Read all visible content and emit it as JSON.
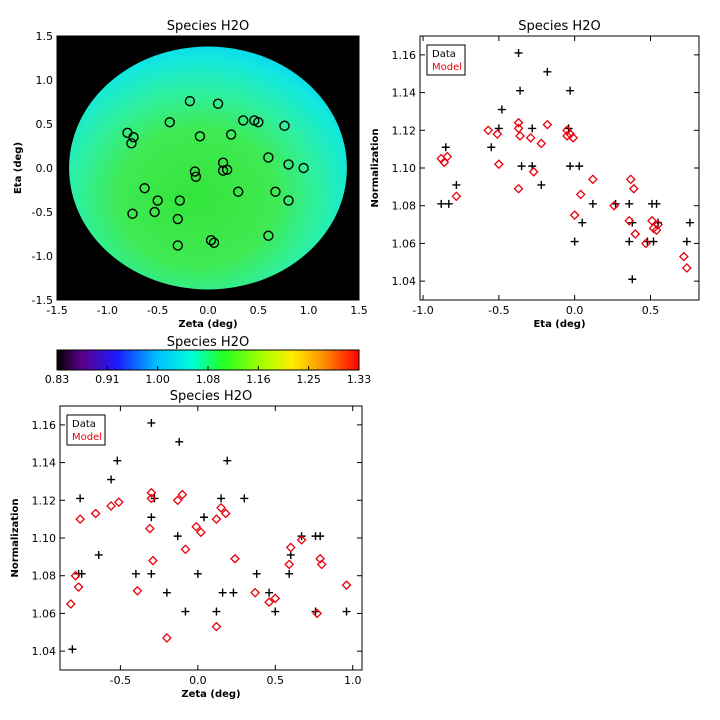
{
  "chart_data": [
    {
      "id": "map",
      "type": "heatmap",
      "title": "Species H2O",
      "xlabel": "Zeta (deg)",
      "ylabel": "Eta (deg)",
      "xlim": [
        -1.5,
        1.5
      ],
      "ylim": [
        -1.5,
        1.5
      ],
      "xticks": [
        -1.5,
        -1.0,
        -0.5,
        0.0,
        0.5,
        1.0,
        1.5
      ],
      "yticks": [
        -1.5,
        -1.0,
        -0.5,
        0.0,
        0.5,
        1.0,
        1.5
      ],
      "disk": {
        "center": [
          0,
          0
        ],
        "radius": 1.38
      },
      "field_color_range": [
        1.04,
        1.2
      ],
      "background": "#000000",
      "points": [
        {
          "x": -0.8,
          "y": 0.4
        },
        {
          "x": -0.74,
          "y": 0.35
        },
        {
          "x": -0.76,
          "y": 0.28
        },
        {
          "x": -0.38,
          "y": 0.52
        },
        {
          "x": -0.18,
          "y": 0.76
        },
        {
          "x": 0.1,
          "y": 0.73
        },
        {
          "x": -0.08,
          "y": 0.36
        },
        {
          "x": 0.23,
          "y": 0.38
        },
        {
          "x": 0.35,
          "y": 0.54
        },
        {
          "x": 0.46,
          "y": 0.54
        },
        {
          "x": 0.5,
          "y": 0.52
        },
        {
          "x": 0.76,
          "y": 0.48
        },
        {
          "x": 0.6,
          "y": 0.12
        },
        {
          "x": 0.8,
          "y": 0.04
        },
        {
          "x": 0.95,
          "y": 0.0
        },
        {
          "x": 0.15,
          "y": 0.06
        },
        {
          "x": 0.15,
          "y": -0.03
        },
        {
          "x": 0.19,
          "y": -0.02
        },
        {
          "x": -0.13,
          "y": -0.04
        },
        {
          "x": -0.12,
          "y": -0.1
        },
        {
          "x": -0.63,
          "y": -0.23
        },
        {
          "x": -0.5,
          "y": -0.37
        },
        {
          "x": -0.28,
          "y": -0.37
        },
        {
          "x": -0.53,
          "y": -0.5
        },
        {
          "x": -0.75,
          "y": -0.52
        },
        {
          "x": -0.3,
          "y": -0.58
        },
        {
          "x": 0.3,
          "y": -0.27
        },
        {
          "x": 0.67,
          "y": -0.27
        },
        {
          "x": 0.8,
          "y": -0.37
        },
        {
          "x": 0.6,
          "y": -0.77
        },
        {
          "x": 0.03,
          "y": -0.82
        },
        {
          "x": 0.06,
          "y": -0.85
        },
        {
          "x": -0.3,
          "y": -0.88
        }
      ]
    },
    {
      "id": "colorbar",
      "type": "colorbar",
      "title": "Species H2O",
      "range": [
        0.83,
        1.33
      ],
      "tick_labels": [
        "0.83",
        "0.91",
        "1.00",
        "1.08",
        "1.16",
        "1.25",
        "1.33"
      ]
    },
    {
      "id": "eta",
      "type": "scatter",
      "title": "Species H2O",
      "xlabel": "Eta (deg)",
      "ylabel": "Normalization",
      "xlim": [
        -1.02,
        0.82
      ],
      "ylim": [
        1.03,
        1.17
      ],
      "xticks": [
        -1.0,
        -0.5,
        0.0,
        0.5
      ],
      "yticks": [
        1.04,
        1.06,
        1.08,
        1.1,
        1.12,
        1.14,
        1.16
      ],
      "legend": {
        "position": "top-left",
        "entries": [
          {
            "label": "Data",
            "color": "#000000"
          },
          {
            "label": "Model",
            "color": "#e8000b"
          }
        ]
      },
      "series": [
        {
          "name": "Data",
          "marker": "plus",
          "color": "#000000",
          "points": [
            [
              -0.85,
              1.111
            ],
            [
              -0.88,
              1.081
            ],
            [
              -0.83,
              1.081
            ],
            [
              -0.78,
              1.091
            ],
            [
              -0.5,
              1.121
            ],
            [
              -0.48,
              1.131
            ],
            [
              -0.55,
              1.111
            ],
            [
              -0.37,
              1.161
            ],
            [
              -0.36,
              1.141
            ],
            [
              -0.35,
              1.101
            ],
            [
              -0.28,
              1.121
            ],
            [
              -0.28,
              1.101
            ],
            [
              -0.22,
              1.091
            ],
            [
              -0.18,
              1.151
            ],
            [
              -0.03,
              1.141
            ],
            [
              -0.04,
              1.121
            ],
            [
              -0.03,
              1.101
            ],
            [
              0.0,
              1.061
            ],
            [
              0.03,
              1.101
            ],
            [
              0.05,
              1.071
            ],
            [
              0.12,
              1.081
            ],
            [
              0.27,
              1.081
            ],
            [
              0.36,
              1.081
            ],
            [
              0.38,
              1.071
            ],
            [
              0.36,
              1.061
            ],
            [
              0.38,
              1.041
            ],
            [
              0.48,
              1.061
            ],
            [
              0.51,
              1.081
            ],
            [
              0.54,
              1.081
            ],
            [
              0.52,
              1.061
            ],
            [
              0.55,
              1.071
            ],
            [
              0.74,
              1.061
            ],
            [
              0.76,
              1.071
            ]
          ]
        },
        {
          "name": "Model",
          "marker": "diamond",
          "color": "#e8000b",
          "points": [
            [
              -0.88,
              1.105
            ],
            [
              -0.86,
              1.103
            ],
            [
              -0.84,
              1.106
            ],
            [
              -0.78,
              1.085
            ],
            [
              -0.57,
              1.12
            ],
            [
              -0.51,
              1.118
            ],
            [
              -0.5,
              1.102
            ],
            [
              -0.37,
              1.124
            ],
            [
              -0.37,
              1.121
            ],
            [
              -0.36,
              1.117
            ],
            [
              -0.37,
              1.089
            ],
            [
              -0.29,
              1.116
            ],
            [
              -0.27,
              1.098
            ],
            [
              -0.22,
              1.113
            ],
            [
              -0.18,
              1.123
            ],
            [
              -0.05,
              1.12
            ],
            [
              -0.05,
              1.117
            ],
            [
              -0.03,
              1.118
            ],
            [
              -0.01,
              1.116
            ],
            [
              0.0,
              1.075
            ],
            [
              0.04,
              1.086
            ],
            [
              0.12,
              1.094
            ],
            [
              0.26,
              1.08
            ],
            [
              0.37,
              1.094
            ],
            [
              0.39,
              1.089
            ],
            [
              0.36,
              1.072
            ],
            [
              0.4,
              1.065
            ],
            [
              0.47,
              1.06
            ],
            [
              0.51,
              1.072
            ],
            [
              0.52,
              1.068
            ],
            [
              0.55,
              1.07
            ],
            [
              0.54,
              1.067
            ],
            [
              0.72,
              1.053
            ],
            [
              0.74,
              1.047
            ]
          ]
        }
      ]
    },
    {
      "id": "zeta",
      "type": "scatter",
      "title": "Species H2O",
      "xlabel": "Zeta (deg)",
      "ylabel": "Normalization",
      "xlim": [
        -0.89,
        1.06
      ],
      "ylim": [
        1.03,
        1.17
      ],
      "xticks": [
        -0.5,
        0.0,
        0.5,
        1.0
      ],
      "yticks": [
        1.04,
        1.06,
        1.08,
        1.1,
        1.12,
        1.14,
        1.16
      ],
      "legend": {
        "position": "top-left",
        "entries": [
          {
            "label": "Data",
            "color": "#000000"
          },
          {
            "label": "Model",
            "color": "#e8000b"
          }
        ]
      },
      "series": [
        {
          "name": "Data",
          "marker": "plus",
          "color": "#000000",
          "points": [
            [
              -0.81,
              1.041
            ],
            [
              -0.77,
              1.081
            ],
            [
              -0.75,
              1.081
            ],
            [
              -0.76,
              1.121
            ],
            [
              -0.64,
              1.091
            ],
            [
              -0.56,
              1.131
            ],
            [
              -0.52,
              1.141
            ],
            [
              -0.4,
              1.081
            ],
            [
              -0.3,
              1.081
            ],
            [
              -0.3,
              1.111
            ],
            [
              -0.3,
              1.161
            ],
            [
              -0.28,
              1.121
            ],
            [
              -0.2,
              1.071
            ],
            [
              -0.13,
              1.101
            ],
            [
              -0.12,
              1.151
            ],
            [
              -0.08,
              1.061
            ],
            [
              0.0,
              1.081
            ],
            [
              0.04,
              1.111
            ],
            [
              0.12,
              1.061
            ],
            [
              0.15,
              1.121
            ],
            [
              0.16,
              1.071
            ],
            [
              0.19,
              1.141
            ],
            [
              0.23,
              1.071
            ],
            [
              0.3,
              1.121
            ],
            [
              0.38,
              1.081
            ],
            [
              0.46,
              1.071
            ],
            [
              0.5,
              1.061
            ],
            [
              0.59,
              1.081
            ],
            [
              0.6,
              1.091
            ],
            [
              0.67,
              1.101
            ],
            [
              0.76,
              1.101
            ],
            [
              0.79,
              1.101
            ],
            [
              0.76,
              1.061
            ],
            [
              0.96,
              1.061
            ]
          ]
        },
        {
          "name": "Model",
          "marker": "diamond",
          "color": "#e8000b",
          "points": [
            [
              -0.82,
              1.065
            ],
            [
              -0.79,
              1.08
            ],
            [
              -0.77,
              1.074
            ],
            [
              -0.76,
              1.11
            ],
            [
              -0.66,
              1.113
            ],
            [
              -0.56,
              1.117
            ],
            [
              -0.51,
              1.119
            ],
            [
              -0.39,
              1.072
            ],
            [
              -0.3,
              1.121
            ],
            [
              -0.3,
              1.124
            ],
            [
              -0.31,
              1.105
            ],
            [
              -0.29,
              1.088
            ],
            [
              -0.2,
              1.047
            ],
            [
              -0.13,
              1.12
            ],
            [
              -0.1,
              1.123
            ],
            [
              -0.08,
              1.094
            ],
            [
              -0.01,
              1.106
            ],
            [
              0.02,
              1.103
            ],
            [
              0.12,
              1.053
            ],
            [
              0.12,
              1.11
            ],
            [
              0.15,
              1.116
            ],
            [
              0.18,
              1.113
            ],
            [
              0.24,
              1.089
            ],
            [
              0.37,
              1.071
            ],
            [
              0.46,
              1.066
            ],
            [
              0.5,
              1.068
            ],
            [
              0.59,
              1.086
            ],
            [
              0.6,
              1.095
            ],
            [
              0.67,
              1.099
            ],
            [
              0.77,
              1.06
            ],
            [
              0.79,
              1.089
            ],
            [
              0.8,
              1.086
            ],
            [
              0.96,
              1.075
            ]
          ]
        }
      ]
    }
  ]
}
